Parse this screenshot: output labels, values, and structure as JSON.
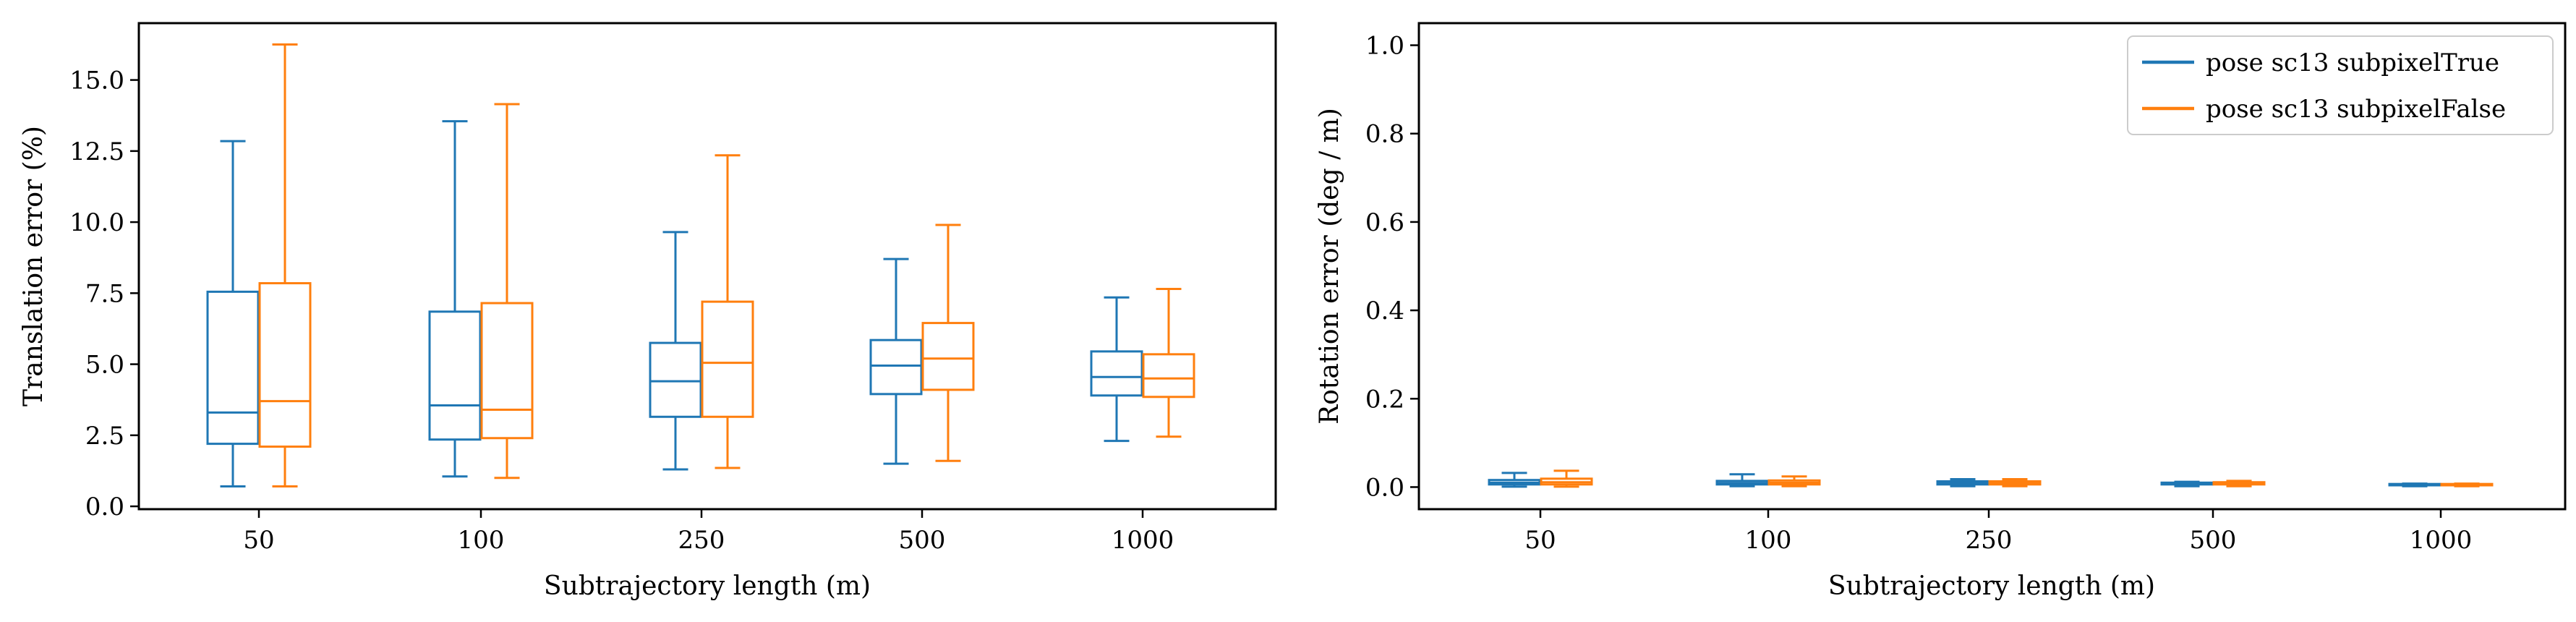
{
  "chart_data": [
    {
      "type": "box",
      "xlabel": "Subtrajectory length (m)",
      "ylabel": "Translation error (%)",
      "categories": [
        "50",
        "100",
        "250",
        "500",
        "1000"
      ],
      "ylim": [
        -0.1,
        17.0
      ],
      "yticks": [
        0.0,
        2.5,
        5.0,
        7.5,
        10.0,
        12.5,
        15.0
      ],
      "ytick_labels": [
        "0.0",
        "2.5",
        "5.0",
        "7.5",
        "10.0",
        "12.5",
        "15.0"
      ],
      "grid": false,
      "series": [
        {
          "color": "#1f77b4",
          "boxes": [
            {
              "whislo": 0.7,
              "q1": 2.2,
              "med": 3.3,
              "q3": 7.55,
              "whishi": 12.85
            },
            {
              "whislo": 1.05,
              "q1": 2.35,
              "med": 3.55,
              "q3": 6.85,
              "whishi": 13.55
            },
            {
              "whislo": 1.3,
              "q1": 3.15,
              "med": 4.4,
              "q3": 5.75,
              "whishi": 9.65
            },
            {
              "whislo": 1.5,
              "q1": 3.95,
              "med": 4.95,
              "q3": 5.85,
              "whishi": 8.7
            },
            {
              "whislo": 2.3,
              "q1": 3.9,
              "med": 4.55,
              "q3": 5.45,
              "whishi": 7.35
            }
          ]
        },
        {
          "color": "#ff7f0e",
          "boxes": [
            {
              "whislo": 0.7,
              "q1": 2.1,
              "med": 3.7,
              "q3": 7.85,
              "whishi": 16.25
            },
            {
              "whislo": 1.0,
              "q1": 2.4,
              "med": 3.4,
              "q3": 7.15,
              "whishi": 14.15
            },
            {
              "whislo": 1.35,
              "q1": 3.15,
              "med": 5.05,
              "q3": 7.2,
              "whishi": 12.35
            },
            {
              "whislo": 1.6,
              "q1": 4.1,
              "med": 5.2,
              "q3": 6.45,
              "whishi": 9.9
            },
            {
              "whislo": 2.45,
              "q1": 3.85,
              "med": 4.5,
              "q3": 5.35,
              "whishi": 7.65
            }
          ]
        }
      ]
    },
    {
      "type": "box",
      "xlabel": "Subtrajectory length (m)",
      "ylabel": "Rotation error (deg / m)",
      "categories": [
        "50",
        "100",
        "250",
        "500",
        "1000"
      ],
      "ylim": [
        -0.05,
        1.05
      ],
      "yticks": [
        0.0,
        0.2,
        0.4,
        0.6,
        0.8,
        1.0
      ],
      "ytick_labels": [
        "0.0",
        "0.2",
        "0.4",
        "0.6",
        "0.8",
        "1.0"
      ],
      "grid": false,
      "legend": {
        "position": "top-right",
        "entries": [
          "pose sc13 subpixelTrue",
          "pose sc13 subpixelFalse"
        ]
      },
      "series": [
        {
          "name": "pose sc13 subpixelTrue",
          "color": "#1f77b4",
          "boxes": [
            {
              "whislo": 0.001,
              "q1": 0.006,
              "med": 0.01,
              "q3": 0.016,
              "whishi": 0.032
            },
            {
              "whislo": 0.002,
              "q1": 0.006,
              "med": 0.009,
              "q3": 0.014,
              "whishi": 0.029
            },
            {
              "whislo": 0.002,
              "q1": 0.006,
              "med": 0.009,
              "q3": 0.013,
              "whishi": 0.018
            },
            {
              "whislo": 0.002,
              "q1": 0.006,
              "med": 0.008,
              "q3": 0.01,
              "whishi": 0.012
            },
            {
              "whislo": 0.002,
              "q1": 0.004,
              "med": 0.005,
              "q3": 0.007,
              "whishi": 0.008
            }
          ]
        },
        {
          "name": "pose sc13 subpixelFalse",
          "color": "#ff7f0e",
          "boxes": [
            {
              "whislo": 0.001,
              "q1": 0.006,
              "med": 0.011,
              "q3": 0.019,
              "whishi": 0.037
            },
            {
              "whislo": 0.002,
              "q1": 0.006,
              "med": 0.01,
              "q3": 0.015,
              "whishi": 0.024
            },
            {
              "whislo": 0.002,
              "q1": 0.006,
              "med": 0.009,
              "q3": 0.013,
              "whishi": 0.018
            },
            {
              "whislo": 0.002,
              "q1": 0.006,
              "med": 0.008,
              "q3": 0.011,
              "whishi": 0.014
            },
            {
              "whislo": 0.002,
              "q1": 0.004,
              "med": 0.005,
              "q3": 0.007,
              "whishi": 0.008
            }
          ]
        }
      ]
    }
  ]
}
